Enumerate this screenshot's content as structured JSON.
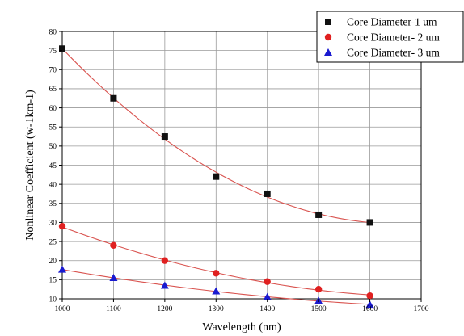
{
  "chart_data": {
    "type": "scatter",
    "title": "",
    "xlabel": "Wavelength (nm)",
    "ylabel": "Nonlinear Coefficient (w-1km-1)",
    "xlim": [
      1000,
      1700
    ],
    "ylim": [
      10,
      80
    ],
    "xticks": [
      1000,
      1100,
      1200,
      1300,
      1400,
      1500,
      1600,
      1700
    ],
    "yticks": [
      10,
      15,
      20,
      25,
      30,
      35,
      40,
      45,
      50,
      55,
      60,
      65,
      70,
      75,
      80
    ],
    "grid": true,
    "legend_position": "top-right",
    "fit_curves": true,
    "series": [
      {
        "name": "Core Diameter-1 um",
        "marker": "square",
        "color": "#111111",
        "fit_color": "#d9534f",
        "x": [
          1000,
          1100,
          1200,
          1300,
          1400,
          1500,
          1600
        ],
        "y": [
          75.5,
          62.5,
          52.5,
          42,
          37.5,
          32,
          30
        ]
      },
      {
        "name": "Core Diameter- 2 um",
        "marker": "circle",
        "color": "#e02020",
        "fit_color": "#d9534f",
        "x": [
          1000,
          1100,
          1200,
          1300,
          1400,
          1500,
          1600
        ],
        "y": [
          29,
          24,
          20,
          16.7,
          14.5,
          12.5,
          10.8
        ]
      },
      {
        "name": "Core Diameter- 3 um",
        "marker": "triangle",
        "color": "#1a1ad0",
        "fit_color": "#d9534f",
        "x": [
          1000,
          1100,
          1200,
          1300,
          1400,
          1500,
          1600
        ],
        "y": [
          17.7,
          15.5,
          13.5,
          12,
          10.5,
          9.5,
          8.5
        ]
      }
    ]
  }
}
